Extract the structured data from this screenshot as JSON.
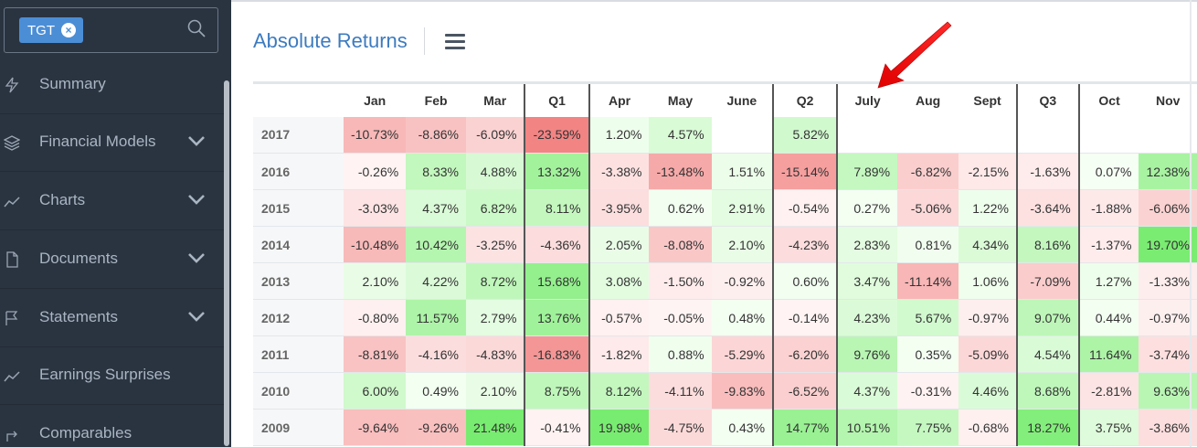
{
  "sidebar": {
    "ticker": "TGT",
    "items": [
      {
        "label": "Summary",
        "icon": "bolt-icon",
        "chevron": false
      },
      {
        "label": "Financial Models",
        "icon": "layers-icon",
        "chevron": true
      },
      {
        "label": "Charts",
        "icon": "line-chart-icon",
        "chevron": true
      },
      {
        "label": "Documents",
        "icon": "document-icon",
        "chevron": true
      },
      {
        "label": "Statements",
        "icon": "flag-icon",
        "chevron": true
      },
      {
        "label": "Earnings Surprises",
        "icon": "trend-icon",
        "chevron": false
      },
      {
        "label": "Comparables",
        "icon": "compare-icon",
        "chevron": false
      }
    ]
  },
  "header": {
    "title": "Absolute Returns"
  },
  "table": {
    "columns": [
      "",
      "Jan",
      "Feb",
      "Mar",
      "Q1",
      "Apr",
      "May",
      "June",
      "Q2",
      "July",
      "Aug",
      "Sept",
      "Q3",
      "Oct",
      "Nov"
    ],
    "rows": [
      {
        "year": "2017",
        "cells": [
          "-10.73%",
          "-8.86%",
          "-6.09%",
          "-23.59%",
          "1.20%",
          "4.57%",
          "",
          "5.82%",
          "",
          "",
          "",
          "",
          "",
          ""
        ]
      },
      {
        "year": "2016",
        "cells": [
          "-0.26%",
          "8.33%",
          "4.88%",
          "13.32%",
          "-3.38%",
          "-13.48%",
          "1.51%",
          "-15.14%",
          "7.89%",
          "-6.82%",
          "-2.15%",
          "-1.63%",
          "0.07%",
          "12.38%"
        ]
      },
      {
        "year": "2015",
        "cells": [
          "-3.03%",
          "4.37%",
          "6.82%",
          "8.11%",
          "-3.95%",
          "0.62%",
          "2.91%",
          "-0.54%",
          "0.27%",
          "-5.06%",
          "1.22%",
          "-3.64%",
          "-1.88%",
          "-6.06%"
        ]
      },
      {
        "year": "2014",
        "cells": [
          "-10.48%",
          "10.42%",
          "-3.25%",
          "-4.36%",
          "2.05%",
          "-8.08%",
          "2.10%",
          "-4.23%",
          "2.83%",
          "0.81%",
          "4.34%",
          "8.16%",
          "-1.37%",
          "19.70%"
        ]
      },
      {
        "year": "2013",
        "cells": [
          "2.10%",
          "4.22%",
          "8.72%",
          "15.68%",
          "3.08%",
          "-1.50%",
          "-0.92%",
          "0.60%",
          "3.47%",
          "-11.14%",
          "1.06%",
          "-7.09%",
          "1.27%",
          "-1.33%"
        ]
      },
      {
        "year": "2012",
        "cells": [
          "-0.80%",
          "11.57%",
          "2.79%",
          "13.76%",
          "-0.57%",
          "-0.05%",
          "0.48%",
          "-0.14%",
          "4.23%",
          "5.67%",
          "-0.97%",
          "9.07%",
          "0.44%",
          "-0.97%"
        ]
      },
      {
        "year": "2011",
        "cells": [
          "-8.81%",
          "-4.16%",
          "-4.83%",
          "-16.83%",
          "-1.82%",
          "0.88%",
          "-5.29%",
          "-6.20%",
          "9.76%",
          "0.35%",
          "-5.09%",
          "4.54%",
          "11.64%",
          "-3.74%"
        ]
      },
      {
        "year": "2010",
        "cells": [
          "6.00%",
          "0.49%",
          "2.10%",
          "8.75%",
          "8.12%",
          "-4.11%",
          "-9.83%",
          "-6.52%",
          "4.37%",
          "-0.31%",
          "4.46%",
          "8.68%",
          "-2.81%",
          "9.63%"
        ]
      },
      {
        "year": "2009",
        "cells": [
          "-9.64%",
          "-9.26%",
          "21.48%",
          "-0.41%",
          "19.98%",
          "-4.75%",
          "0.43%",
          "14.77%",
          "10.51%",
          "7.75%",
          "-0.68%",
          "18.27%",
          "3.75%",
          "-3.86%"
        ]
      }
    ]
  },
  "colors": {
    "sidebar_bg": "#2a3441",
    "accent": "#3d7bbf",
    "positive": "#6ee56a",
    "negative": "#f08484"
  }
}
